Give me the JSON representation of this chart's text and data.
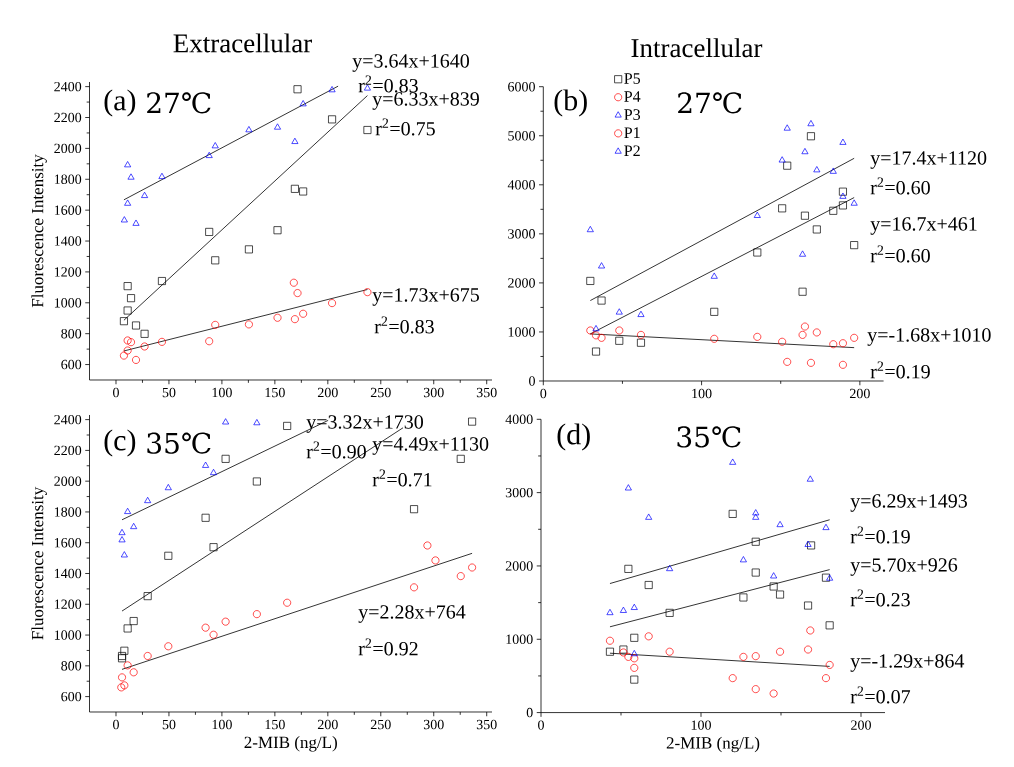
{
  "chart_data": [
    {
      "type": "scatter",
      "title": "Extracellular",
      "subtitle": "27℃",
      "ylabel": "Fluorescence Intensity",
      "xlim": [
        -25,
        355
      ],
      "ylim": [
        500,
        2430
      ],
      "xticks": [
        0,
        50,
        100,
        150,
        200,
        250,
        300,
        350
      ],
      "yticks": [
        600,
        800,
        1000,
        1200,
        1400,
        1600,
        1800,
        2000,
        2200,
        2400
      ],
      "series": [
        {
          "color": "#000000",
          "marker": "square",
          "x": [
            7.5,
            11,
            14.2,
            11,
            18.9,
            27,
            43.4,
            88,
            93.7,
            125.5,
            152.5,
            168.9,
            176.7,
            171.4,
            204,
            237.4
          ],
          "values": [
            881,
            1108,
            1030,
            950,
            853,
            799,
            1141,
            1459,
            1275,
            1346,
            1470,
            1738,
            1721,
            2383,
            2188,
            2119
          ]
        },
        {
          "color": "#ff0000",
          "marker": "circle",
          "x": [
            7.5,
            11,
            14.2,
            11,
            18.9,
            27,
            43.4,
            88,
            93.7,
            125.5,
            152.5,
            168.9,
            167.9,
            171.4,
            176.7,
            204,
            237.4
          ],
          "values": [
            658,
            756,
            745,
            691,
            630,
            717,
            747,
            751,
            857,
            860,
            903,
            894,
            1130,
            1063,
            929,
            998,
            1069
          ]
        },
        {
          "color": "#0000ff",
          "marker": "triangle",
          "x": [
            7.9,
            11,
            11,
            14.2,
            18.9,
            27,
            43.4,
            88,
            93.7,
            125.5,
            152.5,
            168.9,
            176.7,
            204,
            237.4
          ],
          "values": [
            1535,
            1892,
            1643,
            1812,
            1513,
            1693,
            1816,
            1952,
            2015,
            2119,
            2136,
            2043,
            2287,
            2378,
            2389
          ]
        },
        {
          "type": "line",
          "color": "#000000",
          "marker": "none",
          "x": [
            7.5,
            209.7
          ],
          "values": [
            1667,
            2403
          ]
        },
        {
          "type": "line",
          "color": "#000000",
          "marker": "none",
          "x": [
            7.5,
            237.4
          ],
          "values": [
            887,
            2342
          ]
        },
        {
          "type": "line",
          "color": "#000000",
          "marker": "none",
          "x": [
            7.5,
            237.4
          ],
          "values": [
            688,
            1086
          ]
        }
      ],
      "annotations": [
        "(a)",
        "y=3.64x+1640",
        "r$^{2}$=0.83",
        "y=6.33x+839",
        "r$^{2}$=0.75",
        "y=1.73x+675",
        "r$^{2}$=0.83"
      ]
    },
    {
      "type": "scatter",
      "title": "Intracellular",
      "subtitle": "27℃",
      "legend": "top left",
      "xlim": [
        0,
        215
      ],
      "ylim": [
        0,
        6000
      ],
      "xticks": [
        0,
        100,
        200
      ],
      "yticks": [
        0,
        1000,
        2000,
        3000,
        4000,
        5000,
        6000
      ],
      "series": [
        {
          "name": "P5",
          "color": "#000000",
          "marker": "square",
          "x": [
            29.7,
            33.3,
            36.8,
            48,
            61.7,
            108,
            135.2,
            150.9,
            154.1,
            163.8,
            165.3,
            169.1,
            172.8,
            183.2,
            189.3,
            189.3,
            196.4
          ],
          "values": [
            2040,
            600,
            1640,
            820,
            780,
            1410,
            2620,
            3520,
            4390,
            1820,
            3370,
            4990,
            3090,
            3470,
            3860,
            3580,
            2770
          ]
        },
        {
          "name": "P4",
          "color": "#ff0000",
          "marker": "circle"
        },
        {
          "name": "P3",
          "color": "#0000ff",
          "marker": "triangle"
        },
        {
          "name": "P1",
          "color": "#ff0000",
          "marker": "circle",
          "x": [
            29.7,
            33.3,
            36.8,
            48,
            61.7,
            108,
            135.2,
            150.9,
            154.1,
            163.8,
            165.3,
            169.1,
            172.8,
            183.2,
            189.3,
            189.3,
            196.4
          ],
          "values": [
            1030,
            930,
            880,
            1030,
            940,
            860,
            900,
            800,
            390,
            940,
            1110,
            370,
            990,
            750,
            770,
            330,
            880
          ]
        },
        {
          "name": "P2",
          "color": "#0000ff",
          "marker": "triangle",
          "x": [
            29.7,
            33.3,
            36.8,
            48,
            61.7,
            108,
            135.2,
            150.9,
            154.1,
            163.8,
            165.3,
            169.1,
            172.8,
            183.2,
            189.3,
            189.3,
            196.4
          ],
          "values": [
            3080,
            1060,
            2340,
            1400,
            1350,
            2130,
            3370,
            4500,
            5150,
            2580,
            4670,
            5240,
            4300,
            4270,
            3760,
            4860,
            3620
          ]
        },
        {
          "type": "line",
          "color": "#000000",
          "marker": "none",
          "x": [
            29.7,
            196.4
          ],
          "values": [
            1640,
            4540
          ]
        },
        {
          "type": "line",
          "color": "#000000",
          "marker": "none",
          "x": [
            29.7,
            196.4
          ],
          "values": [
            960,
            3740
          ]
        },
        {
          "type": "line",
          "color": "#000000",
          "marker": "none",
          "x": [
            29.7,
            196.4
          ],
          "values": [
            960,
            680
          ]
        }
      ],
      "annotations": [
        "(b)",
        "y=17.4x+1120",
        "r$^{2}$=0.60",
        "y=16.7x+461",
        "r$^{2}$=0.60",
        "y=-1.68x+1010",
        "r$^{2}$=0.19"
      ]
    },
    {
      "type": "scatter",
      "subtitle": "35℃",
      "xlabel": "2-MIB (ng/L)",
      "ylabel": "Fluorescence Intensity",
      "xlim": [
        -25,
        355
      ],
      "ylim": [
        500,
        2430
      ],
      "xticks": [
        0,
        50,
        100,
        150,
        200,
        250,
        300,
        350
      ],
      "yticks": [
        600,
        800,
        1000,
        1200,
        1400,
        1600,
        1800,
        2000,
        2200,
        2400
      ],
      "series": [
        {
          "color": "#000000",
          "marker": "square",
          "x": [
            5.7,
            5.7,
            7.9,
            11,
            16.7,
            29.9,
            49.4,
            84.6,
            92.1,
            103.5,
            133,
            161.6,
            281.4,
            325.5,
            336.2
          ],
          "values": [
            864,
            849,
            898,
            1043,
            1091,
            1253,
            1515,
            1762,
            1571,
            2145,
            1998,
            2359,
            1818,
            2145,
            2387
          ]
        },
        {
          "color": "#ff0000",
          "marker": "circle",
          "x": [
            5,
            7.9,
            5.7,
            11,
            16.7,
            29.9,
            49.4,
            84.6,
            92.1,
            103.5,
            133,
            161.6,
            281.4,
            294,
            301.6,
            325.5,
            336.2
          ],
          "values": [
            660,
            673,
            725,
            803,
            758,
            864,
            927,
            1048,
            1002,
            1087,
            1136,
            1210,
            1310,
            1582,
            1485,
            1383,
            1439
          ]
        },
        {
          "color": "#0000ff",
          "marker": "triangle",
          "x": [
            5.7,
            5.7,
            7.9,
            11,
            16.7,
            29.9,
            49.4,
            84.6,
            92.1,
            103.5,
            133
          ],
          "values": [
            1617,
            1664,
            1519,
            1801,
            1703,
            1872,
            1956,
            2101,
            2054,
            2383,
            2378
          ]
        },
        {
          "type": "line",
          "color": "#000000",
          "marker": "none",
          "x": [
            5.7,
            200.3
          ],
          "values": [
            1749,
            2395
          ]
        },
        {
          "type": "line",
          "color": "#000000",
          "marker": "none",
          "x": [
            5.7,
            271
          ],
          "values": [
            1156,
            2347
          ]
        },
        {
          "type": "line",
          "color": "#000000",
          "marker": "none",
          "x": [
            5.7,
            336.2
          ],
          "values": [
            777,
            1531
          ]
        }
      ],
      "annotations": [
        "(c)",
        "y=3.32x+1730",
        "r$^{2}$=0.90",
        "y=4.49x+1130",
        "r$^{2}$=0.71",
        "y=2.28x+764",
        "r$^{2}$=0.92"
      ]
    },
    {
      "type": "scatter",
      "subtitle": "35℃",
      "xlabel": "2-MIB (ng/L)",
      "xlim": [
        0,
        215
      ],
      "ylim": [
        0,
        4000
      ],
      "xticks": [
        0,
        100,
        200
      ],
      "yticks": [
        0,
        1000,
        2000,
        3000,
        4000
      ],
      "series": [
        {
          "color": "#000000",
          "marker": "square",
          "x": [
            43.1,
            51.5,
            54.6,
            58.3,
            58.3,
            67.3,
            80.4,
            119.8,
            126.5,
            134.2,
            134.2,
            145.4,
            149.4,
            166.9,
            168.8,
            178.1,
            180.4
          ],
          "values": [
            830,
            860,
            1960,
            1020,
            450,
            1740,
            1360,
            2710,
            1570,
            2330,
            1910,
            1720,
            1610,
            1460,
            2280,
            1840,
            1190
          ]
        },
        {
          "color": "#ff0000",
          "marker": "circle",
          "x": [
            43.1,
            51.5,
            54.6,
            58.3,
            58.3,
            67.3,
            80.4,
            119.8,
            126.5,
            134.2,
            134.2,
            145.4,
            149.4,
            166.9,
            168.3,
            178.1,
            180.4
          ],
          "values": [
            980,
            820,
            760,
            740,
            610,
            1040,
            830,
            470,
            760,
            770,
            320,
            260,
            830,
            860,
            1120,
            470,
            650
          ]
        },
        {
          "color": "#0000ff",
          "marker": "triangle",
          "x": [
            43.1,
            51.5,
            54.6,
            58.3,
            58.3,
            67.3,
            80.4,
            119.8,
            126.5,
            134.2,
            134.2,
            145.4,
            149.4,
            166.9,
            168.3,
            178.1,
            180.4
          ],
          "values": [
            1360,
            1390,
            3060,
            1430,
            800,
            2660,
            1960,
            3410,
            2080,
            2720,
            2660,
            1860,
            2560,
            2290,
            3180,
            2520,
            1830
          ]
        },
        {
          "type": "line",
          "color": "#000000",
          "marker": "none",
          "x": [
            43.1,
            180.4
          ],
          "values": [
            1760,
            2630
          ]
        },
        {
          "type": "line",
          "color": "#000000",
          "marker": "none",
          "x": [
            43.1,
            180.4
          ],
          "values": [
            1170,
            1950
          ]
        },
        {
          "type": "line",
          "color": "#000000",
          "marker": "none",
          "x": [
            43.1,
            180.4
          ],
          "values": [
            810,
            630
          ]
        }
      ],
      "annotations": [
        "(d)",
        "y=6.29x+1493",
        "r$^{2}$=0.19",
        "y=5.70x+926",
        "r$^{2}$=0.23",
        "y=-1.29x+864",
        "r$^{2}$=0.07"
      ]
    }
  ]
}
